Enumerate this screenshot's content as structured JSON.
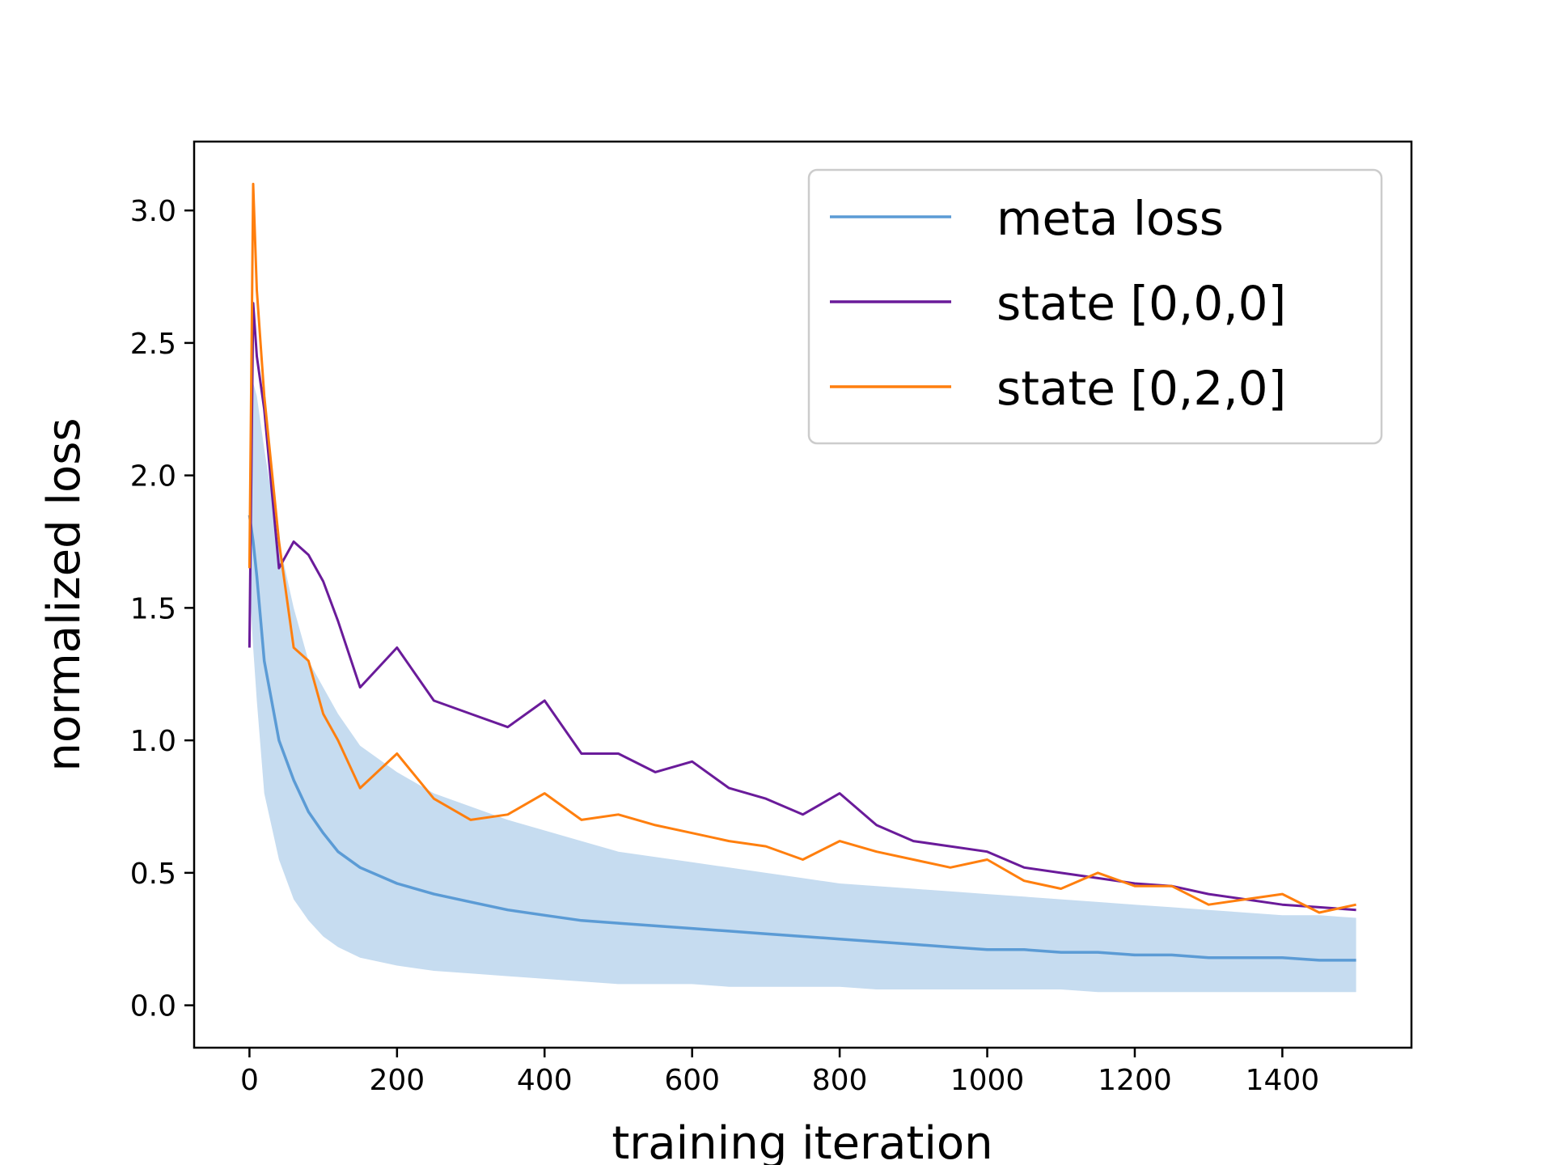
{
  "chart_data": {
    "type": "line",
    "title": "",
    "xlabel": "training iteration",
    "ylabel": "normalized loss",
    "xlim": [
      -75,
      1575
    ],
    "ylim": [
      -0.16,
      3.26
    ],
    "grid": false,
    "legend_position": "top-right",
    "x_ticks": [
      0,
      200,
      400,
      600,
      800,
      1000,
      1200,
      1400
    ],
    "x_tick_labels": [
      "0",
      "200",
      "400",
      "600",
      "800",
      "1000",
      "1200",
      "1400"
    ],
    "y_ticks": [
      0.0,
      0.5,
      1.0,
      1.5,
      2.0,
      2.5,
      3.0
    ],
    "y_tick_labels": [
      "0.0",
      "0.5",
      "1.0",
      "1.5",
      "2.0",
      "2.5",
      "3.0"
    ],
    "x": [
      0,
      5,
      10,
      20,
      40,
      60,
      80,
      100,
      120,
      150,
      200,
      250,
      300,
      350,
      400,
      450,
      500,
      550,
      600,
      650,
      700,
      750,
      800,
      850,
      900,
      950,
      1000,
      1050,
      1100,
      1150,
      1200,
      1250,
      1300,
      1350,
      1400,
      1450,
      1500
    ],
    "series": [
      {
        "name": "meta loss",
        "color": "#5b9bd5",
        "band_color": "#c6dcf0",
        "values": [
          1.85,
          1.75,
          1.62,
          1.3,
          1.0,
          0.85,
          0.73,
          0.65,
          0.58,
          0.52,
          0.46,
          0.42,
          0.39,
          0.36,
          0.34,
          0.32,
          0.31,
          0.3,
          0.29,
          0.28,
          0.27,
          0.26,
          0.25,
          0.24,
          0.23,
          0.22,
          0.21,
          0.21,
          0.2,
          0.2,
          0.19,
          0.19,
          0.18,
          0.18,
          0.18,
          0.17,
          0.17
        ],
        "band_lower": [
          1.6,
          1.35,
          1.15,
          0.8,
          0.55,
          0.4,
          0.32,
          0.26,
          0.22,
          0.18,
          0.15,
          0.13,
          0.12,
          0.11,
          0.1,
          0.09,
          0.08,
          0.08,
          0.08,
          0.07,
          0.07,
          0.07,
          0.07,
          0.06,
          0.06,
          0.06,
          0.06,
          0.06,
          0.06,
          0.05,
          0.05,
          0.05,
          0.05,
          0.05,
          0.05,
          0.05,
          0.05
        ],
        "band_upper": [
          2.0,
          2.35,
          2.3,
          2.1,
          1.75,
          1.5,
          1.3,
          1.2,
          1.1,
          0.98,
          0.88,
          0.8,
          0.75,
          0.7,
          0.66,
          0.62,
          0.58,
          0.56,
          0.54,
          0.52,
          0.5,
          0.48,
          0.46,
          0.45,
          0.44,
          0.43,
          0.42,
          0.41,
          0.4,
          0.39,
          0.38,
          0.37,
          0.36,
          0.35,
          0.34,
          0.34,
          0.33
        ]
      },
      {
        "name": "state [0,0,0]",
        "color": "#6a1b9a",
        "values": [
          1.35,
          2.65,
          2.45,
          2.25,
          1.65,
          1.75,
          1.7,
          1.6,
          1.45,
          1.2,
          1.35,
          1.15,
          1.1,
          1.05,
          1.15,
          0.95,
          0.95,
          0.88,
          0.92,
          0.82,
          0.78,
          0.72,
          0.8,
          0.68,
          0.62,
          0.6,
          0.58,
          0.52,
          0.5,
          0.48,
          0.46,
          0.45,
          0.42,
          0.4,
          0.38,
          0.37,
          0.36
        ]
      },
      {
        "name": "state [0,2,0]",
        "color": "#ff7f0e",
        "values": [
          1.65,
          3.1,
          2.7,
          2.3,
          1.75,
          1.35,
          1.3,
          1.1,
          1.0,
          0.82,
          0.95,
          0.78,
          0.7,
          0.72,
          0.8,
          0.7,
          0.72,
          0.68,
          0.65,
          0.62,
          0.6,
          0.55,
          0.62,
          0.58,
          0.55,
          0.52,
          0.55,
          0.47,
          0.44,
          0.5,
          0.45,
          0.45,
          0.38,
          0.4,
          0.42,
          0.35,
          0.38
        ]
      }
    ]
  }
}
